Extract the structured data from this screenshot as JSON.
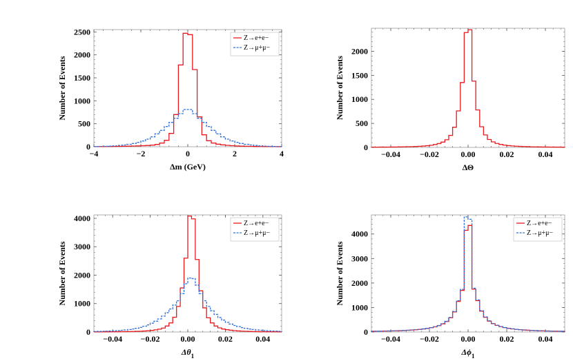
{
  "chart_data": [
    {
      "id": "dm",
      "type": "line",
      "style": "step-histogram",
      "xlabel": "Δm (GeV)",
      "ylabel": "Number of Events",
      "xlim": [
        -4,
        4
      ],
      "ylim": [
        0,
        2550
      ],
      "xticks": [
        -4,
        -2,
        0,
        2,
        4
      ],
      "xtick_labels": [
        "−4",
        "−2",
        "0",
        "2",
        "4"
      ],
      "yticks": [
        0,
        500,
        1000,
        1500,
        2000,
        2500
      ],
      "ytick_labels": [
        "0",
        "500",
        "1000",
        "1500",
        "2000",
        "2500"
      ],
      "grid": false,
      "legend": "top-right",
      "bin_edges": [
        -4.0,
        -3.8,
        -3.6,
        -3.4,
        -3.2,
        -3.0,
        -2.8,
        -2.6,
        -2.4,
        -2.2,
        -2.0,
        -1.8,
        -1.6,
        -1.4,
        -1.2,
        -1.0,
        -0.8,
        -0.6,
        -0.4,
        -0.2,
        0.0,
        0.2,
        0.4,
        0.6,
        0.8,
        1.0,
        1.2,
        1.4,
        1.6,
        1.8,
        2.0,
        2.2,
        2.4,
        2.6,
        2.8,
        3.0,
        3.2,
        3.4,
        3.6,
        3.8,
        4.0
      ],
      "series": [
        {
          "name": "Z→e+e−",
          "color": "#e8191d",
          "dash": "solid",
          "values": [
            2,
            3,
            4,
            5,
            6,
            8,
            10,
            12,
            15,
            18,
            22,
            27,
            35,
            50,
            80,
            140,
            290,
            700,
            1780,
            2470,
            2440,
            1680,
            650,
            260,
            130,
            80,
            55,
            40,
            30,
            22,
            16,
            12,
            9,
            7,
            5,
            4,
            3,
            2,
            2,
            1
          ]
        },
        {
          "name": "Z→μ+μ−",
          "color": "#2f6fdc",
          "dash": "dashed",
          "values": [
            4,
            6,
            9,
            13,
            19,
            27,
            38,
            52,
            70,
            95,
            125,
            165,
            215,
            280,
            355,
            440,
            530,
            620,
            720,
            810,
            810,
            720,
            620,
            530,
            440,
            355,
            280,
            215,
            165,
            125,
            95,
            70,
            52,
            38,
            27,
            19,
            13,
            9,
            6,
            4
          ]
        }
      ]
    },
    {
      "id": "dtheta",
      "type": "line",
      "style": "step-histogram",
      "xlabel": "ΔΘ",
      "ylabel": "Number of Events",
      "xlim": [
        -0.05,
        0.05
      ],
      "ylim": [
        0,
        2480
      ],
      "xticks": [
        -0.04,
        -0.02,
        0.0,
        0.02,
        0.04
      ],
      "xtick_labels": [
        "−0.04",
        "−0.02",
        "0.00",
        "0.02",
        "0.04"
      ],
      "yticks": [
        0,
        500,
        1000,
        1500,
        2000
      ],
      "ytick_labels": [
        "0",
        "500",
        "1000",
        "1500",
        "2000"
      ],
      "grid": false,
      "legend": "none",
      "bin_edges": [
        -0.05,
        -0.048,
        -0.046,
        -0.044,
        -0.042,
        -0.04,
        -0.038,
        -0.036,
        -0.034,
        -0.032,
        -0.03,
        -0.028,
        -0.026,
        -0.024,
        -0.022,
        -0.02,
        -0.018,
        -0.016,
        -0.014,
        -0.012,
        -0.01,
        -0.008,
        -0.006,
        -0.004,
        -0.002,
        0.0,
        0.002,
        0.004,
        0.006,
        0.008,
        0.01,
        0.012,
        0.014,
        0.016,
        0.018,
        0.02,
        0.022,
        0.024,
        0.026,
        0.028,
        0.03,
        0.032,
        0.034,
        0.036,
        0.038,
        0.04,
        0.042,
        0.044,
        0.046,
        0.048,
        0.05
      ],
      "series": [
        {
          "name": "",
          "color": "#e8191d",
          "dash": "solid",
          "values": [
            5,
            5,
            6,
            6,
            7,
            8,
            9,
            10,
            12,
            14,
            16,
            19,
            23,
            28,
            35,
            45,
            60,
            80,
            110,
            160,
            250,
            420,
            760,
            1350,
            2390,
            2450,
            1380,
            780,
            430,
            260,
            165,
            115,
            82,
            62,
            47,
            37,
            30,
            25,
            21,
            18,
            15,
            13,
            11,
            10,
            9,
            8,
            7,
            6,
            6,
            5
          ]
        }
      ]
    },
    {
      "id": "dtheta1",
      "type": "line",
      "style": "step-histogram",
      "xlabel": "Δθ1",
      "ylabel": "Number of Events",
      "xlim": [
        -0.05,
        0.05
      ],
      "ylim": [
        0,
        4120
      ],
      "xticks": [
        -0.04,
        -0.02,
        0.0,
        0.02,
        0.04
      ],
      "xtick_labels": [
        "−0.04",
        "−0.02",
        "0.00",
        "0.02",
        "0.04"
      ],
      "yticks": [
        0,
        1000,
        2000,
        3000,
        4000
      ],
      "ytick_labels": [
        "0",
        "1000",
        "2000",
        "3000",
        "4000"
      ],
      "grid": false,
      "legend": "top-right",
      "bin_edges": [
        -0.05,
        -0.048,
        -0.046,
        -0.044,
        -0.042,
        -0.04,
        -0.038,
        -0.036,
        -0.034,
        -0.032,
        -0.03,
        -0.028,
        -0.026,
        -0.024,
        -0.022,
        -0.02,
        -0.018,
        -0.016,
        -0.014,
        -0.012,
        -0.01,
        -0.008,
        -0.006,
        -0.004,
        -0.002,
        0.0,
        0.002,
        0.004,
        0.006,
        0.008,
        0.01,
        0.012,
        0.014,
        0.016,
        0.018,
        0.02,
        0.022,
        0.024,
        0.026,
        0.028,
        0.03,
        0.032,
        0.034,
        0.036,
        0.038,
        0.04,
        0.042,
        0.044,
        0.046,
        0.048,
        0.05
      ],
      "series": [
        {
          "name": "Z→e+e−",
          "color": "#e8191d",
          "dash": "solid",
          "values": [
            4,
            5,
            6,
            7,
            8,
            9,
            10,
            12,
            14,
            16,
            19,
            23,
            28,
            35,
            44,
            56,
            75,
            100,
            140,
            210,
            320,
            520,
            900,
            1550,
            2600,
            4080,
            3980,
            2550,
            1450,
            850,
            500,
            320,
            210,
            145,
            105,
            80,
            62,
            48,
            38,
            30,
            24,
            20,
            16,
            13,
            11,
            9,
            8,
            7,
            6,
            5
          ]
        },
        {
          "name": "Z→μ+μ−",
          "color": "#2f6fdc",
          "dash": "dashed",
          "values": [
            20,
            22,
            26,
            30,
            35,
            42,
            50,
            60,
            72,
            88,
            106,
            130,
            160,
            200,
            250,
            310,
            380,
            460,
            560,
            680,
            810,
            950,
            1100,
            1350,
            1700,
            1900,
            1880,
            1650,
            1350,
            1100,
            900,
            750,
            620,
            510,
            420,
            340,
            280,
            230,
            190,
            155,
            128,
            105,
            87,
            72,
            60,
            50,
            42,
            35,
            30,
            25
          ]
        }
      ]
    },
    {
      "id": "dphi1",
      "type": "line",
      "style": "step-histogram",
      "xlabel": "Δϕ1",
      "ylabel": "Number of Events",
      "xlim": [
        -0.05,
        0.05
      ],
      "ylim": [
        0,
        4780
      ],
      "xticks": [
        -0.04,
        -0.02,
        0.0,
        0.02,
        0.04
      ],
      "xtick_labels": [
        "−0.04",
        "−0.02",
        "0.00",
        "0.02",
        "0.04"
      ],
      "yticks": [
        0,
        1000,
        2000,
        3000,
        4000
      ],
      "ytick_labels": [
        "0",
        "1000",
        "2000",
        "3000",
        "4000"
      ],
      "grid": false,
      "legend": "top-right",
      "bin_edges": [
        -0.05,
        -0.048,
        -0.046,
        -0.044,
        -0.042,
        -0.04,
        -0.038,
        -0.036,
        -0.034,
        -0.032,
        -0.03,
        -0.028,
        -0.026,
        -0.024,
        -0.022,
        -0.02,
        -0.018,
        -0.016,
        -0.014,
        -0.012,
        -0.01,
        -0.008,
        -0.006,
        -0.004,
        -0.002,
        0.0,
        0.002,
        0.004,
        0.006,
        0.008,
        0.01,
        0.012,
        0.014,
        0.016,
        0.018,
        0.02,
        0.022,
        0.024,
        0.026,
        0.028,
        0.03,
        0.032,
        0.034,
        0.036,
        0.038,
        0.04,
        0.042,
        0.044,
        0.046,
        0.048,
        0.05
      ],
      "series": [
        {
          "name": "Z→e+e−",
          "color": "#e8191d",
          "dash": "solid",
          "values": [
            30,
            32,
            35,
            38,
            41,
            45,
            50,
            55,
            62,
            70,
            80,
            92,
            106,
            124,
            146,
            175,
            210,
            260,
            330,
            430,
            580,
            820,
            1250,
            1700,
            4150,
            4350,
            1750,
            1280,
            850,
            600,
            445,
            340,
            270,
            218,
            180,
            150,
            127,
            108,
            94,
            82,
            72,
            64,
            57,
            51,
            46,
            42,
            38,
            35,
            32,
            30
          ]
        },
        {
          "name": "Z→μ+μ−",
          "color": "#2f6fdc",
          "dash": "dashed",
          "values": [
            32,
            34,
            37,
            40,
            43,
            47,
            52,
            57,
            64,
            72,
            82,
            95,
            110,
            128,
            150,
            180,
            215,
            268,
            340,
            440,
            595,
            840,
            1280,
            1740,
            4700,
            4600,
            1790,
            1310,
            870,
            615,
            455,
            348,
            276,
            222,
            183,
            153,
            129,
            110,
            96,
            84,
            74,
            66,
            58,
            52,
            47,
            43,
            39,
            36,
            33,
            31
          ]
        }
      ]
    }
  ]
}
